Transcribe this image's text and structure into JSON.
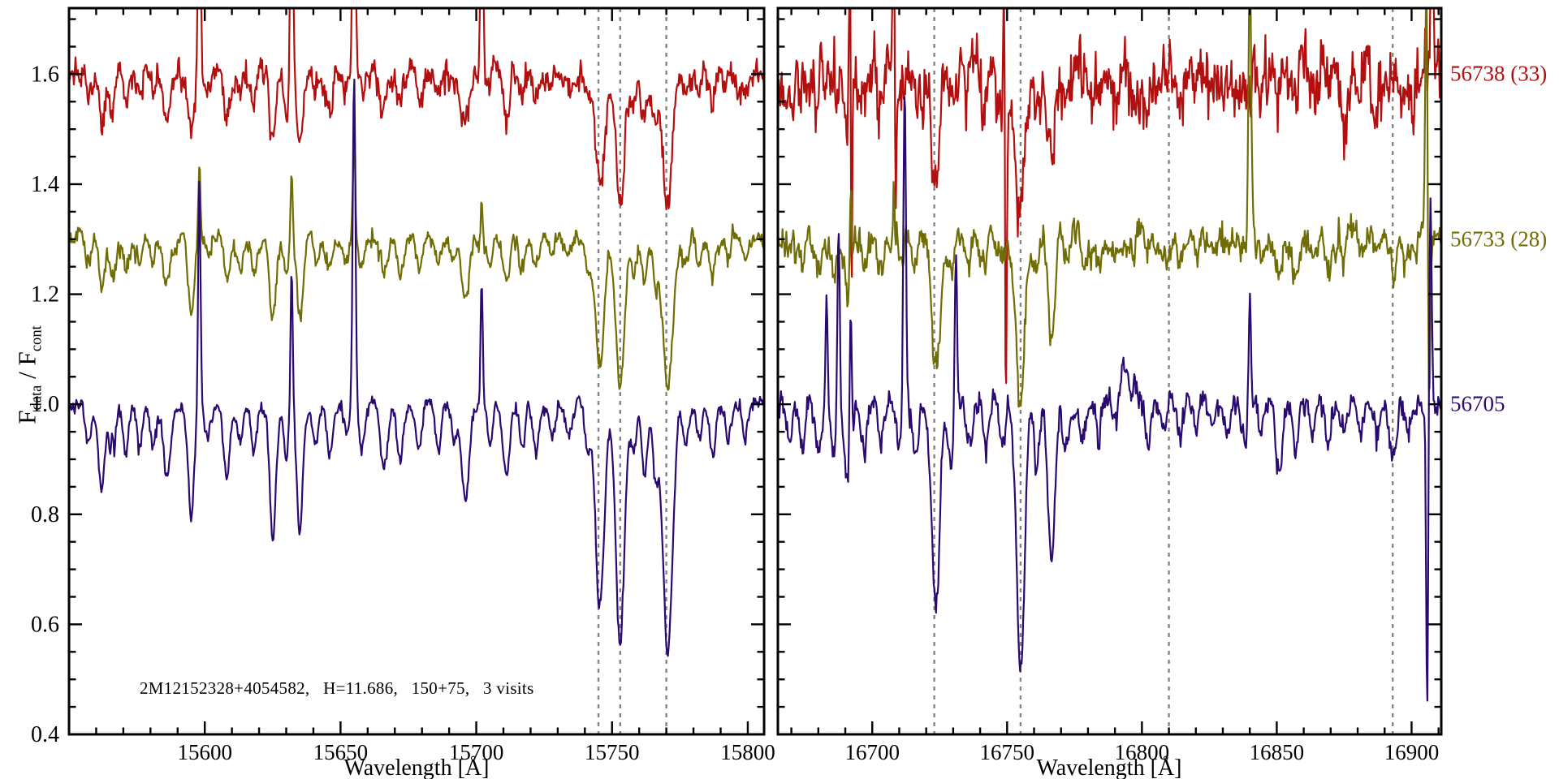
{
  "figure": {
    "background": "#ffffff",
    "axis_color": "#000000",
    "dashed_line_color": "#858585",
    "ylabel_parts": {
      "sym1": "F",
      "sub1": "data",
      "sep": " / ",
      "sym2": "F",
      "sub2": "cont"
    }
  },
  "chart_data": {
    "type": "line",
    "title": "",
    "xlabel": "Wavelength [Å]",
    "ylabel": "F_data / F_cont",
    "ylim": [
      0.4,
      1.72
    ],
    "yticks_major": [
      0.4,
      0.6,
      0.8,
      1.0,
      1.2,
      1.4,
      1.6
    ],
    "y_minor_step": 0.05,
    "x_minor_step": 10,
    "grid": false,
    "legend_position": "right-outside",
    "annotation": "2M12152328+4054582,   H=11.686,   150+75,   3 visits",
    "series": [
      {
        "name": "56738 (33)",
        "color": "#b30f0f",
        "offset": 1.6,
        "depth_scale": 0.56,
        "noise": [
          0.02,
          0.042
        ],
        "seed": 11
      },
      {
        "name": "56733 (28)",
        "color": "#716d05",
        "offset": 1.3,
        "depth_scale": 0.6,
        "noise": [
          0.012,
          0.02
        ],
        "seed": 22
      },
      {
        "name": "56705",
        "color": "#2a0970",
        "offset": 1.0,
        "depth_scale": 1.0,
        "noise": [
          0.01,
          0.016
        ],
        "seed": 33
      }
    ],
    "panels": [
      {
        "xlim": [
          15550,
          15806
        ],
        "xticks_major": [
          15600,
          15650,
          15700,
          15750,
          15800
        ],
        "dashed_lines": [
          15745,
          15753,
          15770
        ],
        "absorption_lines": [
          [
            15557,
            0.07,
            1.0
          ],
          [
            15562,
            0.16,
            1.1
          ],
          [
            15566,
            0.12,
            1.0
          ],
          [
            15571,
            0.1,
            1.0
          ],
          [
            15576,
            0.08,
            1.0
          ],
          [
            15581,
            0.07,
            1.0
          ],
          [
            15586,
            0.13,
            1.5
          ],
          [
            15595,
            0.2,
            1.1
          ],
          [
            15601,
            0.06,
            1.0
          ],
          [
            15608,
            0.13,
            1.1
          ],
          [
            15613,
            0.07,
            1.0
          ],
          [
            15618,
            0.08,
            1.0
          ],
          [
            15625,
            0.24,
            1.2
          ],
          [
            15630,
            0.1,
            0.9
          ],
          [
            15635,
            0.23,
            1.1
          ],
          [
            15641,
            0.07,
            1.0
          ],
          [
            15646,
            0.09,
            1.1
          ],
          [
            15652,
            0.06,
            1.0
          ],
          [
            15658,
            0.08,
            1.0
          ],
          [
            15666,
            0.12,
            1.3
          ],
          [
            15672,
            0.1,
            1.1
          ],
          [
            15679,
            0.08,
            1.0
          ],
          [
            15686,
            0.08,
            1.0
          ],
          [
            15692,
            0.06,
            1.0
          ],
          [
            15696,
            0.17,
            1.4
          ],
          [
            15705,
            0.07,
            1.0
          ],
          [
            15711,
            0.13,
            1.2
          ],
          [
            15717,
            0.08,
            1.0
          ],
          [
            15722,
            0.09,
            1.1
          ],
          [
            15728,
            0.06,
            1.0
          ],
          [
            15734,
            0.06,
            1.0
          ],
          [
            15741,
            0.09,
            1.0
          ],
          [
            15745.5,
            0.38,
            1.6
          ],
          [
            15753,
            0.43,
            1.6
          ],
          [
            15758,
            0.09,
            1.0
          ],
          [
            15762,
            0.13,
            1.1
          ],
          [
            15766,
            0.11,
            1.0
          ],
          [
            15770.5,
            0.45,
            1.8
          ],
          [
            15777,
            0.08,
            1.0
          ],
          [
            15782,
            0.07,
            1.0
          ],
          [
            15787,
            0.09,
            1.1
          ],
          [
            15793,
            0.06,
            1.0
          ],
          [
            15799,
            0.06,
            1.0
          ]
        ],
        "emission_spikes": [
          [
            [
              15598,
              0.5,
              0.45
            ],
            [
              15632,
              0.55,
              0.45
            ],
            [
              15655,
              0.6,
              0.5
            ],
            [
              15702,
              0.55,
              0.45
            ]
          ],
          [
            [
              15598,
              0.13,
              0.4
            ],
            [
              15632,
              0.12,
              0.4
            ],
            [
              15655,
              0.17,
              0.45
            ],
            [
              15702,
              0.07,
              0.4
            ]
          ],
          [
            [
              15566,
              0.08,
              0.35
            ],
            [
              15598,
              0.42,
              0.45
            ],
            [
              15632,
              0.26,
              0.4
            ],
            [
              15655,
              0.6,
              0.5
            ],
            [
              15702,
              0.23,
              0.4
            ]
          ]
        ]
      },
      {
        "xlim": [
          16665,
          16911
        ],
        "xticks_major": [
          16700,
          16750,
          16800,
          16850,
          16900
        ],
        "dashed_lines": [
          16723,
          16755,
          16810,
          16893
        ],
        "absorption_lines": [
          [
            16669,
            0.06,
            1.0
          ],
          [
            16674,
            0.07,
            1.0
          ],
          [
            16680,
            0.08,
            1.1
          ],
          [
            16686,
            0.1,
            1.1
          ],
          [
            16691,
            0.16,
            1.3
          ],
          [
            16697,
            0.09,
            1.0
          ],
          [
            16703,
            0.06,
            1.0
          ],
          [
            16710,
            0.07,
            1.0
          ],
          [
            16716,
            0.09,
            1.1
          ],
          [
            16723.5,
            0.38,
            1.5
          ],
          [
            16729,
            0.1,
            1.0
          ],
          [
            16736,
            0.07,
            1.0
          ],
          [
            16742,
            0.08,
            1.0
          ],
          [
            16748,
            0.07,
            1.0
          ],
          [
            16755,
            0.48,
            1.5
          ],
          [
            16761,
            0.09,
            1.0
          ],
          [
            16766.5,
            0.28,
            1.3
          ],
          [
            16772,
            0.08,
            1.0
          ],
          [
            16778,
            0.06,
            1.0
          ],
          [
            16784,
            0.07,
            1.0
          ],
          [
            16790,
            0.05,
            1.0
          ],
          [
            16796,
            0.06,
            1.0
          ],
          [
            16802,
            0.07,
            1.0
          ],
          [
            16808,
            0.05,
            1.0
          ],
          [
            16814,
            0.06,
            1.0
          ],
          [
            16820,
            0.05,
            1.0
          ],
          [
            16826,
            0.06,
            1.0
          ],
          [
            16832,
            0.05,
            1.0
          ],
          [
            16838,
            0.06,
            1.0
          ],
          [
            16844,
            0.05,
            1.0
          ],
          [
            16851,
            0.12,
            1.2
          ],
          [
            16857,
            0.08,
            1.0
          ],
          [
            16863,
            0.06,
            1.0
          ],
          [
            16869,
            0.07,
            1.0
          ],
          [
            16875,
            0.06,
            1.0
          ],
          [
            16881,
            0.05,
            1.0
          ],
          [
            16887,
            0.06,
            1.0
          ],
          [
            16893,
            0.09,
            1.3
          ],
          [
            16899,
            0.06,
            1.0
          ]
        ],
        "emission_spikes": [
          [
            [
              16691.8,
              0.5,
              0.3
            ],
            [
              16692.2,
              -0.55,
              0.3
            ],
            [
              16708,
              0.65,
              0.35
            ],
            [
              16708.5,
              -0.4,
              0.3
            ],
            [
              16749,
              0.62,
              0.3
            ],
            [
              16749.4,
              -0.78,
              0.35
            ],
            [
              16907.5,
              0.5,
              0.4
            ]
          ],
          [
            [
              16692,
              0.15,
              0.35
            ],
            [
              16708,
              0.1,
              0.35
            ],
            [
              16840,
              0.5,
              0.5
            ],
            [
              16905.5,
              0.48,
              0.45
            ],
            [
              16906.5,
              -0.35,
              0.4
            ]
          ],
          [
            [
              16683,
              0.2,
              0.4
            ],
            [
              16687.5,
              0.35,
              0.45
            ],
            [
              16692,
              0.28,
              0.4
            ],
            [
              16712,
              0.58,
              0.5
            ],
            [
              16731,
              0.3,
              0.45
            ],
            [
              16795,
              0.08,
              2.5
            ],
            [
              16840,
              0.2,
              0.45
            ],
            [
              16905.8,
              -0.55,
              0.4
            ],
            [
              16907,
              0.38,
              0.45
            ]
          ]
        ]
      }
    ]
  }
}
